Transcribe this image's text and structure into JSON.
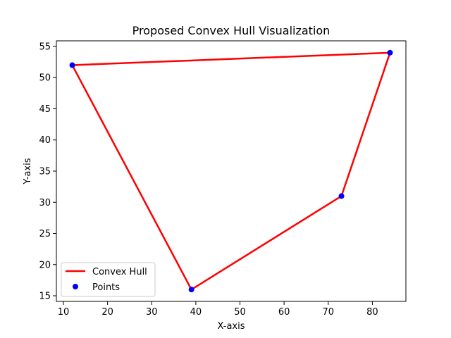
{
  "chart_data": {
    "type": "scatter",
    "title": "Proposed Convex Hull Visualization",
    "xlabel": "X-axis",
    "ylabel": "Y-axis",
    "xlim": [
      8.4,
      87.6
    ],
    "ylim": [
      14.1,
      55.9
    ],
    "xticks": [
      10,
      20,
      30,
      40,
      50,
      60,
      70,
      80
    ],
    "yticks": [
      15,
      20,
      25,
      30,
      35,
      40,
      45,
      50,
      55
    ],
    "grid": false,
    "legend_position": "lower-left",
    "series": [
      {
        "name": "Convex Hull",
        "kind": "line",
        "color": "#ff0000",
        "points": [
          [
            12,
            52
          ],
          [
            84,
            54
          ],
          [
            73,
            31
          ],
          [
            39,
            16
          ],
          [
            12,
            52
          ]
        ]
      },
      {
        "name": "Points",
        "kind": "scatter",
        "color": "#0000ff",
        "points": [
          [
            12,
            52
          ],
          [
            84,
            54
          ],
          [
            73,
            31
          ],
          [
            39,
            16
          ]
        ]
      }
    ]
  }
}
